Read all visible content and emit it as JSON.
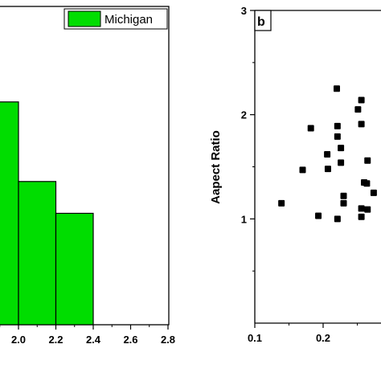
{
  "chart_data": [
    {
      "type": "bar",
      "title": "",
      "xlabel": "",
      "ylabel": "",
      "bin_width": 0.2,
      "xlim": [
        1.8,
        2.8
      ],
      "xticks": [
        "2.0",
        "2.2",
        "2.4",
        "2.6",
        "2.8"
      ],
      "bar_color": "#00dd00",
      "series": [
        {
          "name": "Michigan",
          "bins": [
            1.8,
            2.0,
            2.2
          ],
          "heights": [
            0.7,
            0.45,
            0.35
          ]
        }
      ],
      "legend": {
        "label": "Michigan",
        "position": "top-right"
      }
    },
    {
      "type": "scatter",
      "panel_label": "b",
      "xlabel": "",
      "ylabel": "Aapect Ratio",
      "xlim": [
        0.1,
        0.4
      ],
      "ylim": [
        0,
        3
      ],
      "xticks": [
        "0.1",
        "0.2"
      ],
      "yticks": [
        "1",
        "2",
        "3"
      ],
      "points": [
        {
          "x": 0.139,
          "y": 1.15
        },
        {
          "x": 0.17,
          "y": 1.47
        },
        {
          "x": 0.182,
          "y": 1.87
        },
        {
          "x": 0.193,
          "y": 1.03
        },
        {
          "x": 0.206,
          "y": 1.62
        },
        {
          "x": 0.207,
          "y": 1.48
        },
        {
          "x": 0.22,
          "y": 2.25
        },
        {
          "x": 0.221,
          "y": 1.89
        },
        {
          "x": 0.221,
          "y": 1.79
        },
        {
          "x": 0.221,
          "y": 1.0
        },
        {
          "x": 0.226,
          "y": 1.68
        },
        {
          "x": 0.226,
          "y": 1.54
        },
        {
          "x": 0.23,
          "y": 1.22
        },
        {
          "x": 0.23,
          "y": 1.15
        },
        {
          "x": 0.251,
          "y": 2.05
        },
        {
          "x": 0.256,
          "y": 1.91
        },
        {
          "x": 0.256,
          "y": 2.14
        },
        {
          "x": 0.256,
          "y": 1.1
        },
        {
          "x": 0.256,
          "y": 1.02
        },
        {
          "x": 0.26,
          "y": 1.35
        },
        {
          "x": 0.264,
          "y": 1.34
        },
        {
          "x": 0.265,
          "y": 1.56
        },
        {
          "x": 0.265,
          "y": 1.09
        },
        {
          "x": 0.274,
          "y": 1.25
        }
      ]
    }
  ]
}
